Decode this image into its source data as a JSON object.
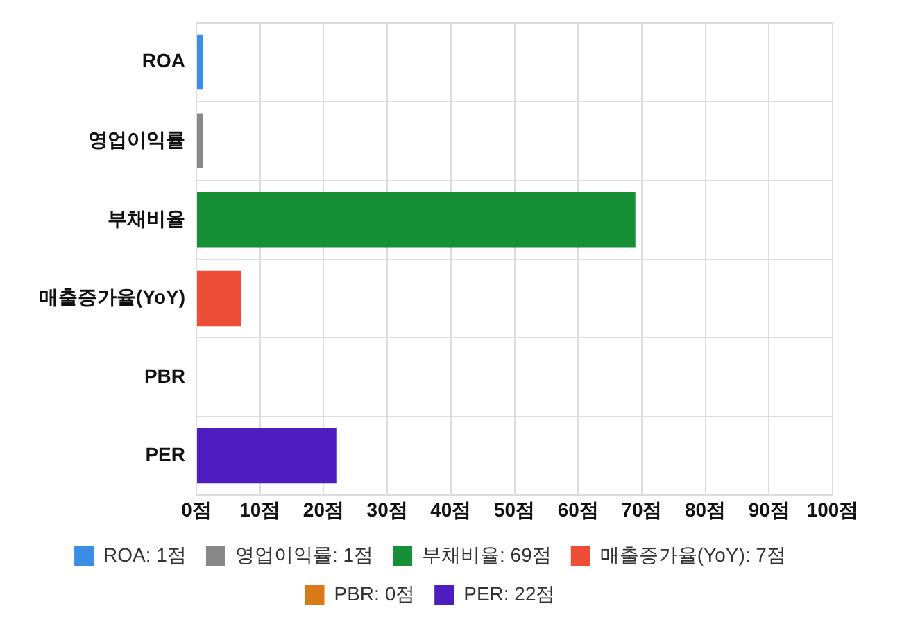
{
  "chart_data": {
    "type": "bar",
    "orientation": "horizontal",
    "stacked": true,
    "categories": [
      "ROA",
      "영업이익률",
      "부채비율",
      "매출증가율(YoY)",
      "PBR",
      "PER"
    ],
    "series": [
      {
        "name": "ROA: 1점",
        "color": "#3a8ee6",
        "values": [
          1,
          null,
          null,
          null,
          null,
          null
        ]
      },
      {
        "name": "영업이익률: 1점",
        "color": "#888888",
        "values": [
          null,
          1,
          null,
          null,
          null,
          null
        ]
      },
      {
        "name": "부채비율: 69점",
        "color": "#168f37",
        "values": [
          null,
          null,
          69,
          null,
          null,
          null
        ]
      },
      {
        "name": "매출증가율(YoY): 7점",
        "color": "#ee4d38",
        "values": [
          null,
          null,
          null,
          7,
          null,
          null
        ]
      },
      {
        "name": "PBR: 0점",
        "color": "#d97a1a",
        "values": [
          null,
          null,
          null,
          null,
          0,
          null
        ]
      },
      {
        "name": "PER: 22점",
        "color": "#4e1dc0",
        "values": [
          null,
          null,
          null,
          null,
          null,
          22
        ]
      }
    ],
    "xlim": [
      0,
      100
    ],
    "xticks": [
      {
        "value": 0,
        "label": "0점"
      },
      {
        "value": 10,
        "label": "10점"
      },
      {
        "value": 20,
        "label": "20점"
      },
      {
        "value": 30,
        "label": "30점"
      },
      {
        "value": 40,
        "label": "40점"
      },
      {
        "value": 50,
        "label": "50점"
      },
      {
        "value": 60,
        "label": "60점"
      },
      {
        "value": 70,
        "label": "70점"
      },
      {
        "value": 80,
        "label": "80점"
      },
      {
        "value": 90,
        "label": "90점"
      },
      {
        "value": 100,
        "label": "100점"
      }
    ],
    "grid": true,
    "legend": "bottom"
  }
}
